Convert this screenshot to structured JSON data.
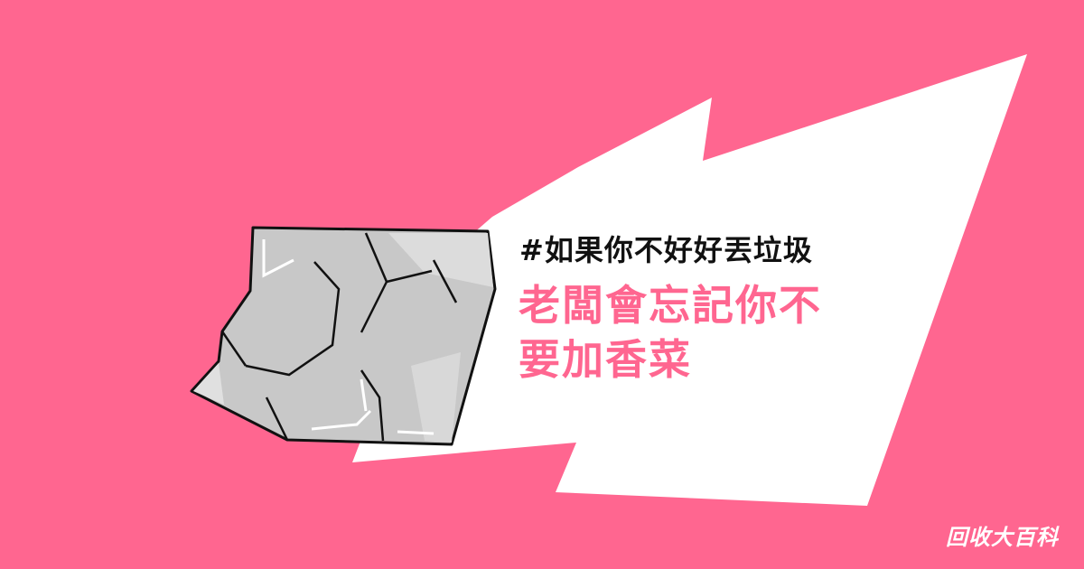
{
  "hashtag": "#如果你不好好丟垃圾",
  "headline": {
    "line1": "老闆會忘記你不",
    "line2": "要加香菜"
  },
  "brand": "回收大百科",
  "colors": {
    "background": "#ff6690",
    "burst": "#ffffff",
    "accent_text": "#ff6690",
    "dark_text": "#111111",
    "foil": "#c8c8c8"
  },
  "icons": [
    "speech-burst-shape",
    "crumpled-foil-icon"
  ]
}
